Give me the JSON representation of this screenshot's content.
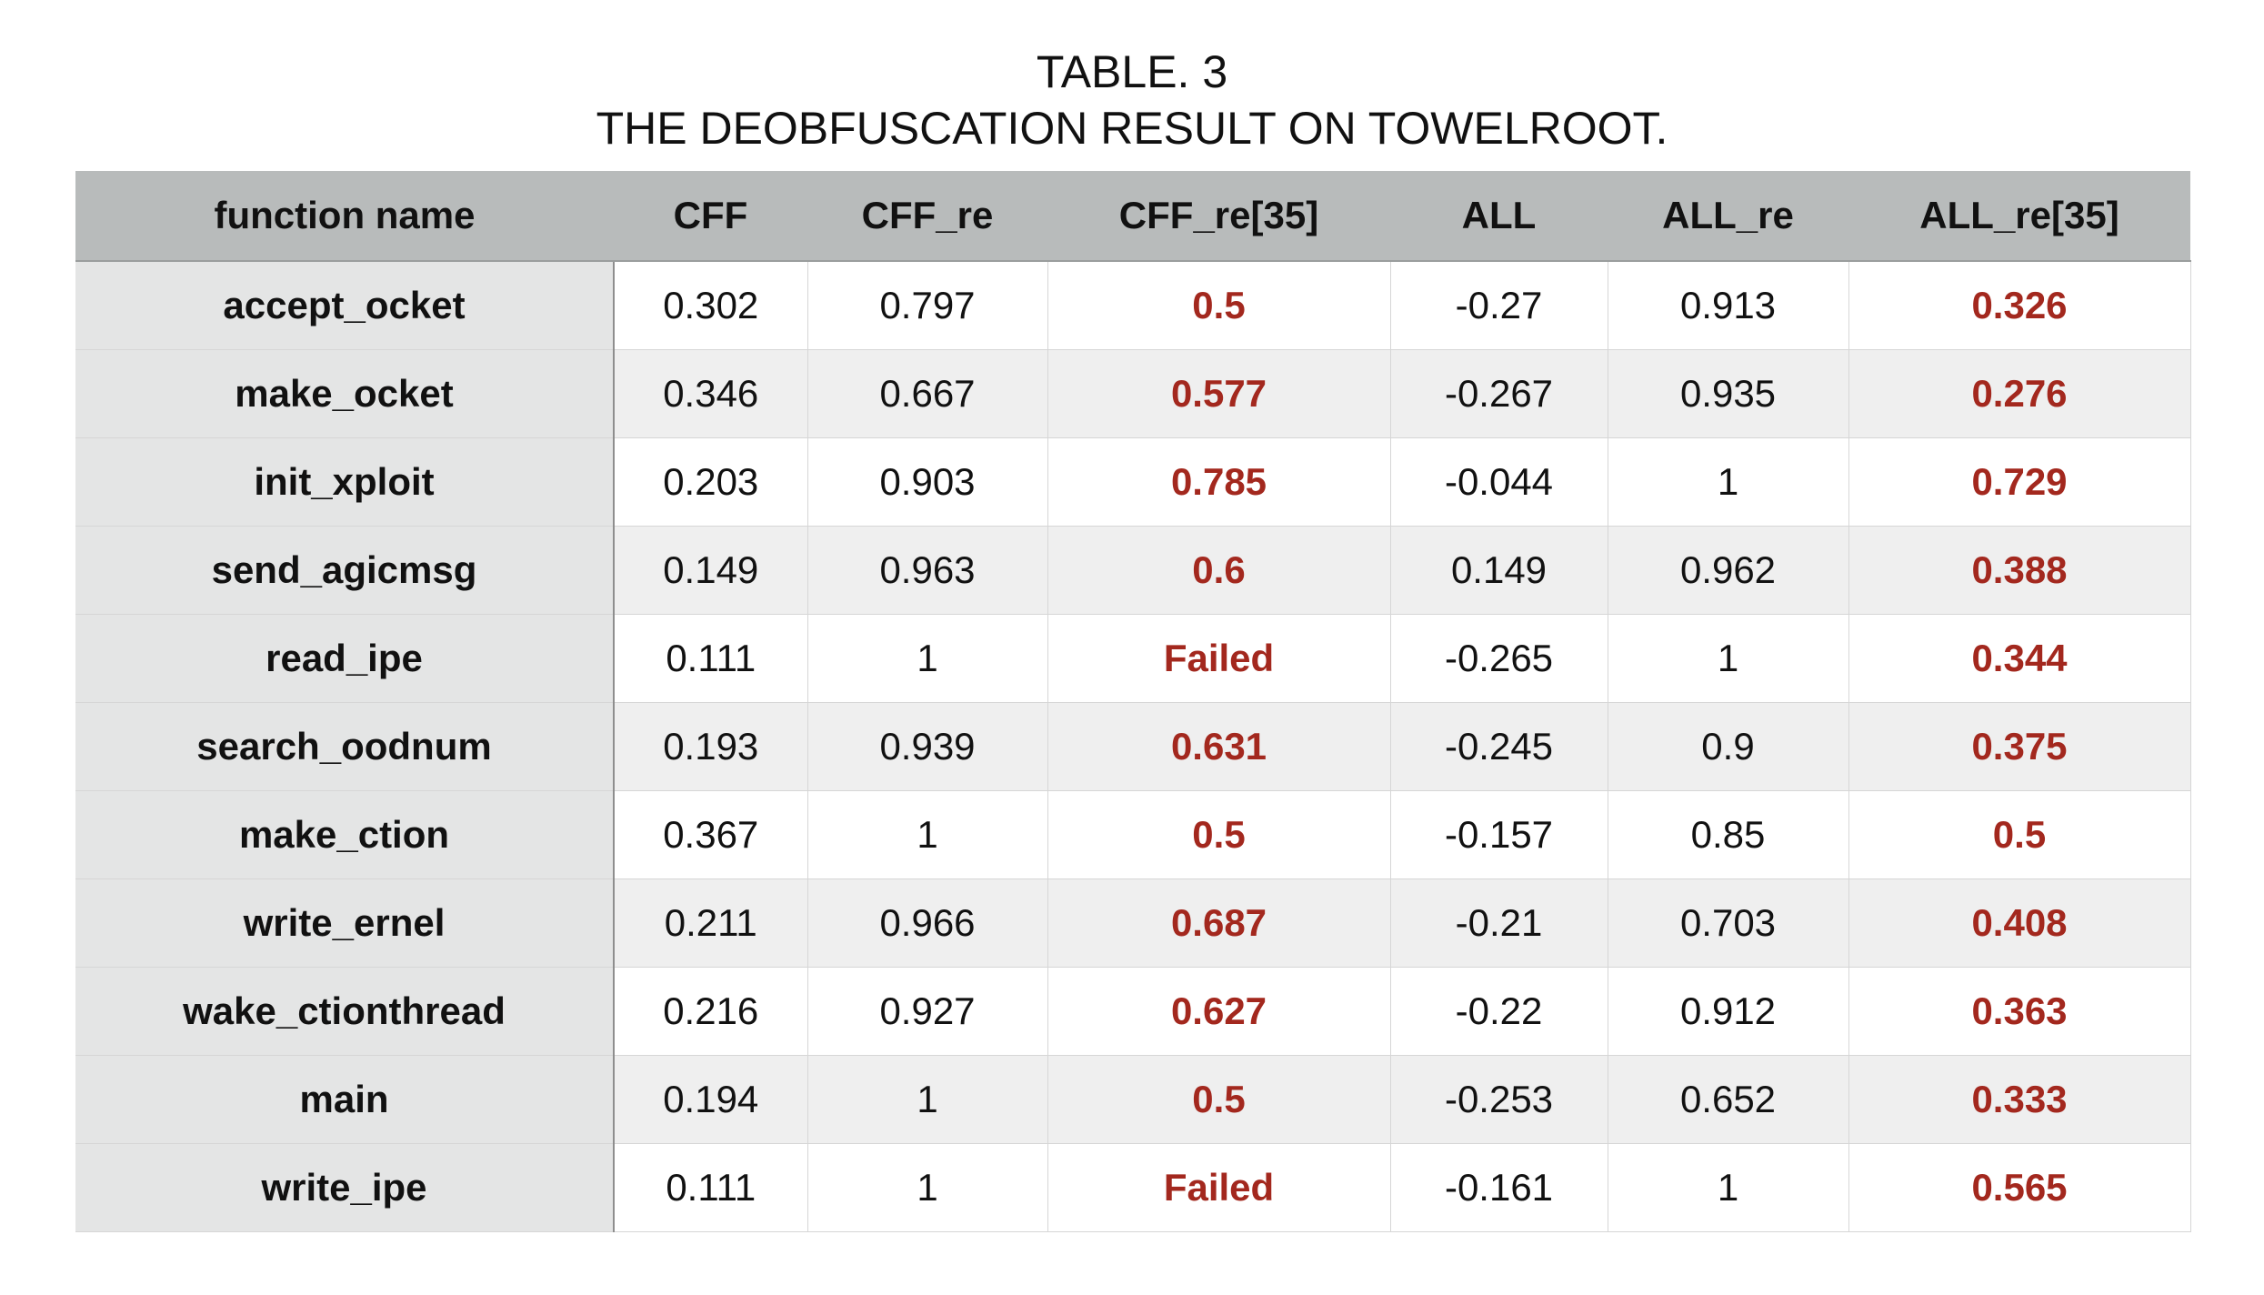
{
  "caption": {
    "line1": "TABLE. 3",
    "line2": "THE DEOBFUSCATION RESULT ON TOWELROOT."
  },
  "highlight_color": "#a3281e",
  "table": {
    "headers": [
      "function name",
      "CFF",
      "CFF_re",
      "CFF_re[35]",
      "ALL",
      "ALL_re",
      "ALL_re[35]"
    ],
    "rows": [
      [
        "accept_ocket",
        "0.302",
        "0.797",
        "0.5",
        "-0.27",
        "0.913",
        "0.326"
      ],
      [
        "make_ocket",
        "0.346",
        "0.667",
        "0.577",
        "-0.267",
        "0.935",
        "0.276"
      ],
      [
        "init_xploit",
        "0.203",
        "0.903",
        "0.785",
        "-0.044",
        "1",
        "0.729"
      ],
      [
        "send_agicmsg",
        "0.149",
        "0.963",
        "0.6",
        "0.149",
        "0.962",
        "0.388"
      ],
      [
        "read_ipe",
        "0.111",
        "1",
        "Failed",
        "-0.265",
        "1",
        "0.344"
      ],
      [
        "search_oodnum",
        "0.193",
        "0.939",
        "0.631",
        "-0.245",
        "0.9",
        "0.375"
      ],
      [
        "make_ction",
        "0.367",
        "1",
        "0.5",
        "-0.157",
        "0.85",
        "0.5"
      ],
      [
        "write_ernel",
        "0.211",
        "0.966",
        "0.687",
        "-0.21",
        "0.703",
        "0.408"
      ],
      [
        "wake_ctionthread",
        "0.216",
        "0.927",
        "0.627",
        "-0.22",
        "0.912",
        "0.363"
      ],
      [
        "main",
        "0.194",
        "1",
        "0.5",
        "-0.253",
        "0.652",
        "0.333"
      ],
      [
        "write_ipe",
        "0.111",
        "1",
        "Failed",
        "-0.161",
        "1",
        "0.565"
      ]
    ]
  }
}
